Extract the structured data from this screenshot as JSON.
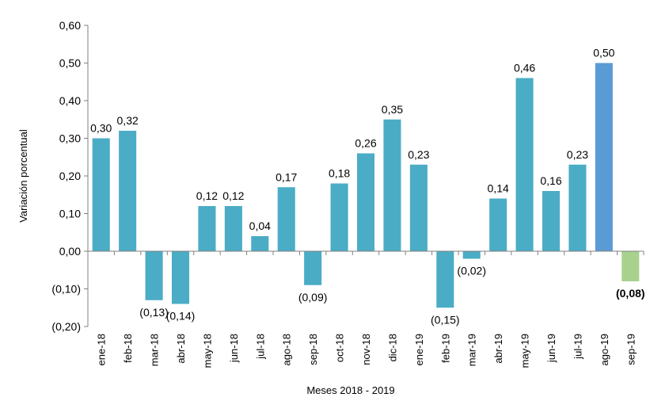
{
  "chart_data": {
    "type": "bar",
    "title": "",
    "xlabel": "Meses 2018 - 2019",
    "ylabel": "Variación porcentual",
    "ylim": [
      -0.2,
      0.6
    ],
    "y_ticks": [
      "(0,20)",
      "(0,10)",
      "0,00",
      "0,10",
      "0,20",
      "0,30",
      "0,40",
      "0,50",
      "0,60"
    ],
    "y_tick_values": [
      -0.2,
      -0.1,
      0.0,
      0.1,
      0.2,
      0.3,
      0.4,
      0.5,
      0.6
    ],
    "grid": false,
    "legend": "none",
    "categories": [
      "ene-18",
      "feb-18",
      "mar-18",
      "abr-18",
      "may-18",
      "jun-18",
      "jul-18",
      "ago-18",
      "sep-18",
      "oct-18",
      "nov-18",
      "dic-18",
      "ene-19",
      "feb-19",
      "mar-19",
      "abr-19",
      "may-19",
      "jun-19",
      "jul-19",
      "ago-19",
      "sep-19"
    ],
    "values": [
      0.3,
      0.32,
      -0.13,
      -0.14,
      0.12,
      0.12,
      0.04,
      0.17,
      -0.09,
      0.18,
      0.26,
      0.35,
      0.23,
      -0.15,
      -0.02,
      0.14,
      0.46,
      0.16,
      0.23,
      0.5,
      -0.08
    ],
    "value_labels": [
      "0,30",
      "0,32",
      "(0,13)",
      "(0,14)",
      "0,12",
      "0,12",
      "0,04",
      "0,17",
      "(0,09)",
      "0,18",
      "0,26",
      "0,35",
      "0,23",
      "(0,15)",
      "(0,02)",
      "0,14",
      "0,46",
      "0,16",
      "0,23",
      "0,50",
      "(0,08)"
    ],
    "colors": {
      "default": "#4bacc6",
      "highlight_current": "#5b9bd5",
      "highlight_last": "#a9d18e"
    },
    "bar_colors": [
      "default",
      "default",
      "default",
      "default",
      "default",
      "default",
      "default",
      "default",
      "default",
      "default",
      "default",
      "default",
      "default",
      "default",
      "default",
      "default",
      "default",
      "default",
      "default",
      "highlight_current",
      "highlight_last"
    ],
    "bold_labels": [
      20
    ]
  }
}
